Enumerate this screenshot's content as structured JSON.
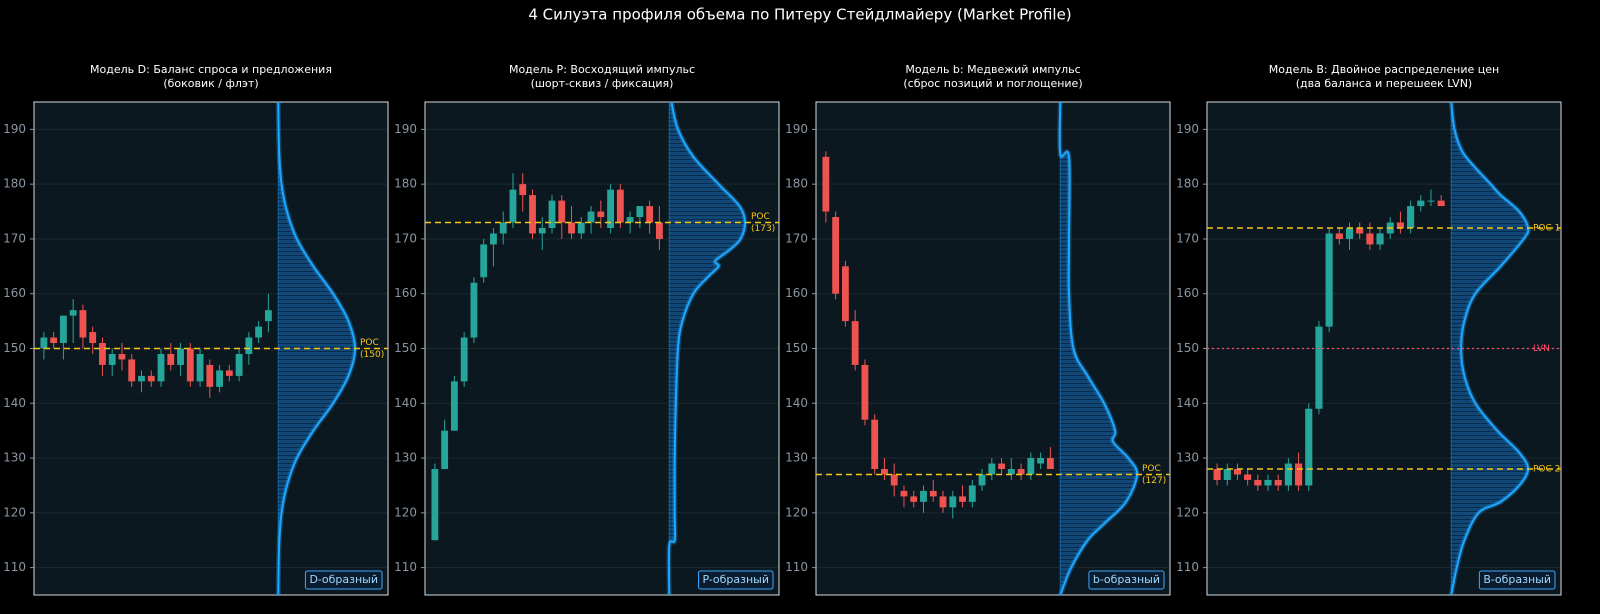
{
  "title": "4 Силуэта профиля объема по Питеру Стейдлмайеру (Market Profile)",
  "chart_data": [
    {
      "type": "candlestick",
      "title": "Модель D: Баланс спроса и предложения",
      "subtitle": "(боковик / флэт)",
      "ylim": [
        105,
        195
      ],
      "yticks": [
        110,
        120,
        130,
        140,
        150,
        160,
        170,
        180,
        190
      ],
      "grid": true,
      "up_color": "#26a69a",
      "down_color": "#ef5350",
      "candles": {
        "open": [
          150,
          152,
          151,
          156,
          157,
          153,
          151,
          147,
          149,
          148,
          144,
          145,
          144,
          149,
          147,
          150,
          144,
          147,
          143,
          146,
          145,
          149,
          152,
          155
        ],
        "high": [
          153,
          153,
          156,
          159,
          158,
          154,
          152,
          150,
          151,
          149,
          146,
          146,
          150,
          151,
          151,
          151,
          150,
          148,
          147,
          147,
          150,
          153,
          155,
          160
        ],
        "low": [
          148,
          150,
          148,
          151,
          150,
          149,
          145,
          145,
          146,
          143,
          142,
          143,
          143,
          146,
          145,
          143,
          143,
          141,
          142,
          144,
          144,
          147,
          151,
          153
        ],
        "close": [
          152,
          151,
          156,
          157,
          152,
          151,
          147,
          149,
          148,
          144,
          145,
          144,
          149,
          147,
          150,
          144,
          149,
          143,
          146,
          145,
          149,
          152,
          154,
          157
        ]
      },
      "profile": {
        "color": "#1ea7ff",
        "xlim": [
          0,
          100
        ],
        "prices": [
          105,
          110,
          115,
          120,
          125,
          130,
          135,
          140,
          145,
          150,
          155,
          160,
          165,
          170,
          175,
          180,
          185,
          190,
          195
        ],
        "volumes": [
          0,
          0.3,
          1,
          3,
          8,
          17,
          32,
          50,
          64,
          70,
          64,
          50,
          32,
          17,
          8,
          3,
          1,
          0.3,
          0
        ]
      },
      "levels": [
        {
          "value": 150,
          "label": "POC",
          "value_label": "(150)",
          "color": "#f5c518",
          "style": "dashed"
        }
      ],
      "badge": "D-образный"
    },
    {
      "type": "candlestick",
      "title": "Модель P: Восходящий импульс",
      "subtitle": "(шорт-сквиз / фиксация)",
      "ylim": [
        105,
        195
      ],
      "yticks": [
        110,
        120,
        130,
        140,
        150,
        160,
        170,
        180,
        190
      ],
      "grid": true,
      "up_color": "#26a69a",
      "down_color": "#ef5350",
      "candles": {
        "open": [
          115,
          128,
          135,
          144,
          152,
          163,
          169,
          171,
          173,
          180,
          178,
          171,
          172,
          177,
          173,
          171,
          173,
          175,
          172,
          179,
          173,
          174,
          176,
          173
        ],
        "high": [
          129,
          137,
          145,
          153,
          163,
          170,
          172,
          175,
          182,
          182,
          179,
          174,
          178,
          178,
          176,
          174,
          176,
          177,
          180,
          180,
          175,
          176,
          177,
          176
        ],
        "low": [
          115,
          128,
          135,
          143,
          151,
          162,
          165,
          169,
          172,
          175,
          170,
          168,
          171,
          170,
          170,
          170,
          171,
          172,
          171,
          172,
          171,
          172,
          171,
          168
        ],
        "close": [
          128,
          135,
          144,
          152,
          162,
          169,
          171,
          173,
          179,
          178,
          171,
          172,
          177,
          173,
          171,
          173,
          175,
          174,
          179,
          173,
          174,
          176,
          173,
          170
        ]
      },
      "profile": {
        "color": "#1ea7ff",
        "xlim": [
          0,
          100
        ],
        "prices": [
          105,
          114,
          115,
          120,
          130,
          140,
          150,
          155,
          160,
          163,
          165,
          166,
          168,
          170,
          173,
          176,
          180,
          185,
          190,
          195
        ],
        "volumes": [
          0,
          0,
          5,
          5,
          5,
          6,
          8,
          12,
          22,
          35,
          45,
          42,
          55,
          65,
          69,
          64,
          45,
          22,
          8,
          2
        ]
      },
      "levels": [
        {
          "value": 173,
          "label": "POC",
          "value_label": "(173)",
          "color": "#f5c518",
          "style": "dashed"
        }
      ],
      "badge": "P-образный"
    },
    {
      "type": "candlestick",
      "title": "Модель b: Медвежий импульс",
      "subtitle": "(сброс позиций и поглощение)",
      "ylim": [
        105,
        195
      ],
      "yticks": [
        110,
        120,
        130,
        140,
        150,
        160,
        170,
        180,
        190
      ],
      "grid": true,
      "up_color": "#26a69a",
      "down_color": "#ef5350",
      "candles": {
        "open": [
          185,
          174,
          165,
          155,
          147,
          137,
          128,
          127,
          124,
          123,
          122,
          124,
          123,
          121,
          123,
          122,
          125,
          127,
          129,
          127,
          128,
          127,
          129,
          130
        ],
        "high": [
          186,
          175,
          166,
          157,
          148,
          138,
          130,
          129,
          125,
          124,
          125,
          126,
          124,
          124,
          125,
          126,
          128,
          130,
          130,
          130,
          129,
          131,
          131,
          132
        ],
        "low": [
          173,
          159,
          154,
          146,
          136,
          127,
          126,
          123,
          121,
          121,
          120,
          122,
          120,
          119,
          121,
          121,
          124,
          126,
          127,
          126,
          126,
          126,
          128,
          128
        ],
        "close": [
          175,
          160,
          155,
          147,
          137,
          128,
          127,
          125,
          123,
          122,
          124,
          123,
          121,
          123,
          122,
          125,
          127,
          129,
          128,
          128,
          127,
          130,
          130,
          128
        ]
      },
      "profile": {
        "color": "#1ea7ff",
        "xlim": [
          0,
          100
        ],
        "prices": [
          105,
          110,
          115,
          118,
          122,
          127,
          130,
          133,
          135,
          140,
          145,
          150,
          160,
          170,
          185,
          185.5,
          195
        ],
        "volumes": [
          0,
          10,
          25,
          40,
          60,
          70,
          62,
          48,
          50,
          40,
          25,
          12,
          8,
          8,
          8,
          0,
          0
        ]
      },
      "levels": [
        {
          "value": 127,
          "label": "POC",
          "value_label": "(127)",
          "color": "#f5c518",
          "style": "dashed"
        }
      ],
      "badge": "b-образный"
    },
    {
      "type": "candlestick",
      "title": "Модель B: Двойное распределение цен",
      "subtitle": "(два баланса и перешеек LVN)",
      "ylim": [
        105,
        195
      ],
      "yticks": [
        110,
        120,
        130,
        140,
        150,
        160,
        170,
        180,
        190
      ],
      "grid": true,
      "up_color": "#26a69a",
      "down_color": "#ef5350",
      "candles": {
        "open": [
          128,
          126,
          128,
          127,
          126,
          125,
          126,
          125,
          129,
          125,
          139,
          154,
          171,
          170,
          172,
          171,
          169,
          171,
          173,
          172,
          176,
          177,
          177
        ],
        "high": [
          129,
          129,
          129,
          128,
          127,
          127,
          127,
          130,
          131,
          140,
          155,
          172,
          172,
          173,
          173,
          173,
          172,
          174,
          175,
          177,
          178,
          179,
          178
        ],
        "low": [
          125,
          125,
          126,
          125,
          124,
          124,
          124,
          124,
          124,
          124,
          138,
          153,
          169,
          168,
          170,
          168,
          168,
          170,
          171,
          171,
          175,
          176,
          176
        ],
        "close": [
          126,
          128,
          127,
          126,
          125,
          126,
          125,
          129,
          125,
          139,
          154,
          171,
          170,
          172,
          171,
          169,
          171,
          173,
          172,
          176,
          177,
          177,
          176
        ]
      },
      "profile": {
        "color": "#1ea7ff",
        "xlim": [
          0,
          100
        ],
        "prices": [
          105,
          110,
          115,
          120,
          122,
          125,
          128,
          131,
          135,
          140,
          145,
          150,
          155,
          160,
          165,
          170,
          172,
          175,
          178,
          180,
          183,
          186,
          190,
          195
        ],
        "volumes": [
          0,
          5,
          12,
          25,
          45,
          62,
          70,
          62,
          42,
          22,
          12,
          9,
          12,
          22,
          45,
          66,
          70,
          62,
          45,
          36,
          22,
          10,
          3,
          0
        ]
      },
      "levels": [
        {
          "value": 172,
          "label": "POC 1",
          "color": "#f5c518",
          "style": "dashed"
        },
        {
          "value": 150,
          "label": "LVN",
          "color": "#ff4d6d",
          "style": "dotted"
        },
        {
          "value": 128,
          "label": "POC 2",
          "color": "#f5c518",
          "style": "dashed"
        }
      ],
      "badge": "B-образный"
    }
  ]
}
